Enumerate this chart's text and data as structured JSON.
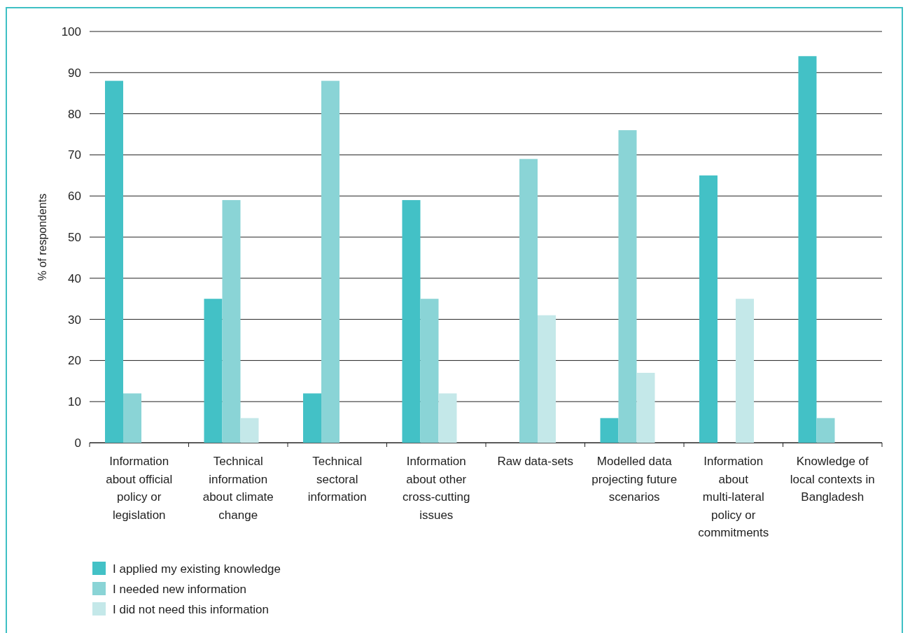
{
  "chart_data": {
    "type": "bar",
    "ylabel": "% of respondents",
    "categories": [
      "Information about official policy or legislation",
      "Technical information about climate change",
      "Technical sectoral information",
      "Information about other cross-cutting issues",
      "Raw data-sets",
      "Modelled data projecting future scenarios",
      "Information about multi-lateral policy or commitments",
      "Knowledge of local contexts in Bangladesh"
    ],
    "series": [
      {
        "name": "I applied my existing knowledge",
        "color": "#43c1c6",
        "values": [
          88,
          35,
          12,
          59,
          null,
          6,
          65,
          94
        ]
      },
      {
        "name": "I needed new information",
        "color": "#8ad4d6",
        "values": [
          12,
          59,
          88,
          35,
          69,
          76,
          null,
          6
        ]
      },
      {
        "name": "I did not need this information",
        "color": "#c4e8e9",
        "values": [
          null,
          6,
          null,
          12,
          31,
          17,
          35,
          null
        ]
      }
    ],
    "ylim": [
      0,
      100
    ],
    "yticks": [
      0,
      10,
      20,
      30,
      40,
      50,
      60,
      70,
      80,
      90,
      100
    ],
    "grid": "y",
    "legend": "bottom left"
  }
}
